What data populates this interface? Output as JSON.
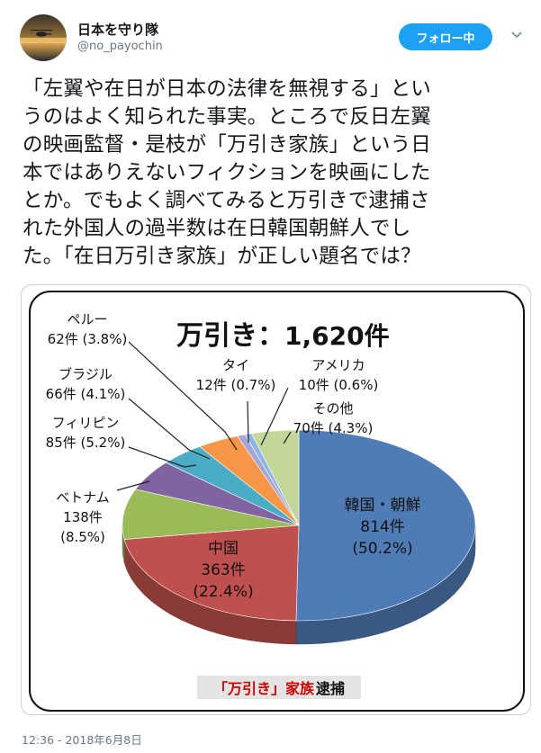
{
  "user": {
    "display_name": "日本を守り隊",
    "handle": "@no_payochin",
    "follow_label": "フォロー中"
  },
  "tweet": {
    "lines": [
      "「左翼や在日が日本の法律を無視する」とい",
      "うのはよく知られた事実。ところで反日左翼",
      "の映画監督・是枝が「万引き家族」という日",
      "本ではありえないフィクションを映画にした",
      "とか。でもよく調べてみると万引きで逮捕さ",
      "れた外国人の過半数は在日韓国朝鮮人でし",
      "た。「在日万引き家族」が正しい題名では？"
    ],
    "timestamp": "12:36 - 2018年6月8日"
  },
  "chart_data": {
    "type": "pie",
    "title_prefix": "万引き：",
    "title_count": "1,620件",
    "caption_red": "「万引き」家族",
    "caption_black": "逮捕",
    "slices": [
      {
        "name": "韓国・朝鮮",
        "count": "814件",
        "pct": "(50.2%)",
        "value": 814,
        "color": "#4f7cb6"
      },
      {
        "name": "中国",
        "count": "363件",
        "pct": "(22.4%)",
        "value": 363,
        "color": "#c0504d"
      },
      {
        "name": "ベトナム",
        "count": "138件",
        "pct": "(8.5%)",
        "value": 138,
        "color": "#9bbb59"
      },
      {
        "name": "フィリピン",
        "count": "85件",
        "pct": "(5.2%)",
        "value": 85,
        "color": "#8064a2"
      },
      {
        "name": "ブラジル",
        "count": "66件",
        "pct": "(4.1%)",
        "value": 66,
        "color": "#4bacc6"
      },
      {
        "name": "ペルー",
        "count": "62件",
        "pct": "(3.8%)",
        "value": 62,
        "color": "#f79646"
      },
      {
        "name": "タイ",
        "count": "12件",
        "pct": "(0.7%)",
        "value": 12,
        "color": "#a5a5d8"
      },
      {
        "name": "アメリカ",
        "count": "10件",
        "pct": "(0.6%)",
        "value": 10,
        "color": "#8db4e2"
      },
      {
        "name": "その他",
        "count": "70件",
        "pct": "(4.3%)",
        "value": 70,
        "color": "#c4d79b"
      }
    ]
  }
}
